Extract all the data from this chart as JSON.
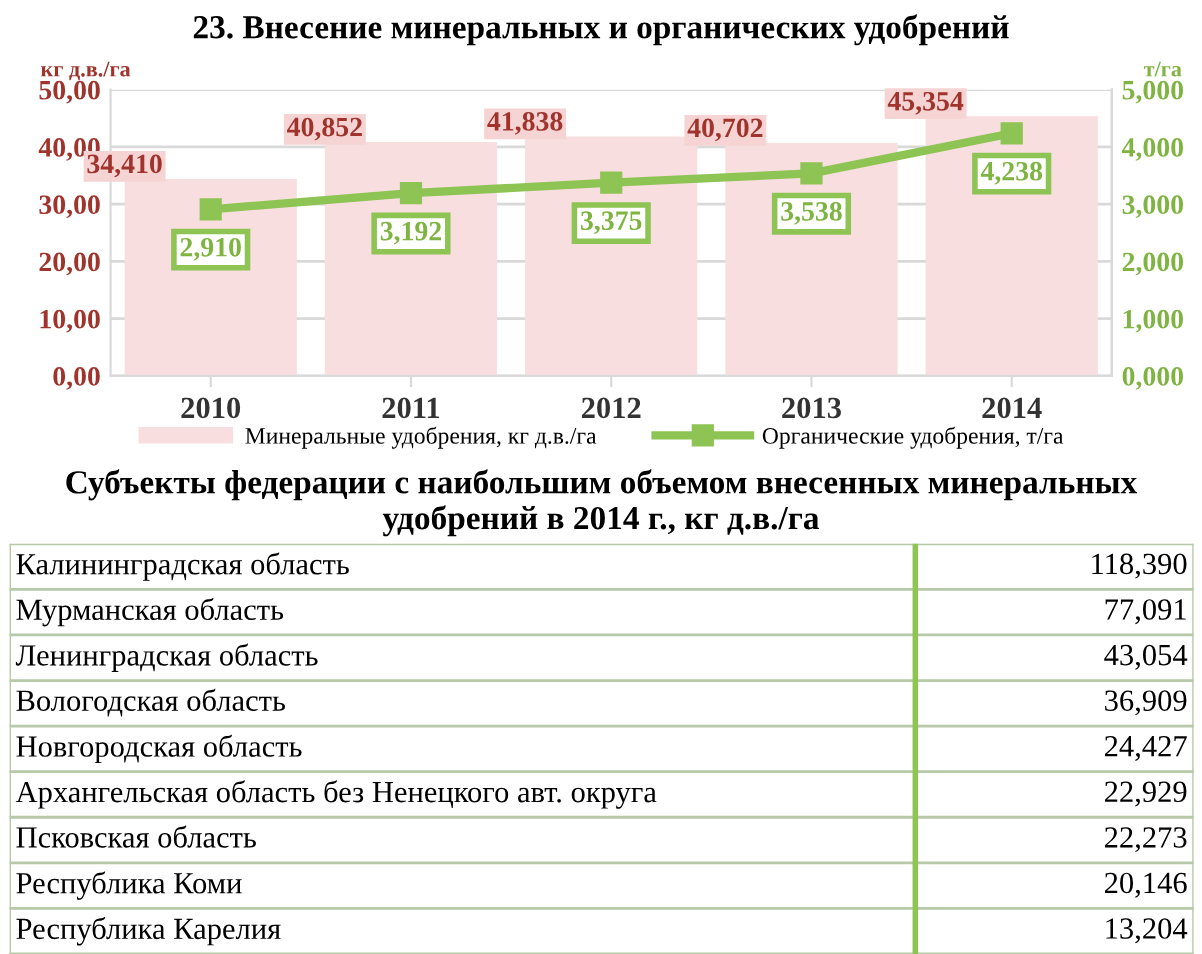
{
  "chart_data": [
    {
      "type": "bar",
      "title": "23. Внесение минеральных и органических удобрений",
      "ylabel": "кг д.в./га",
      "y2label": "т/га",
      "categories": [
        "2010",
        "2011",
        "2012",
        "2013",
        "2014"
      ],
      "series": [
        {
          "name": "Минеральные удобрения, кг д.в./га",
          "type": "bar",
          "color": "#f8dede",
          "values": [
            34.41,
            40.852,
            41.838,
            40.702,
            45.354
          ],
          "value_labels": [
            "34,410",
            "40,852",
            "41,838",
            "40,702",
            "45,354"
          ]
        },
        {
          "name": "Органические удобрения, т/га",
          "type": "line",
          "axis": "y2",
          "color": "#8dc453",
          "values": [
            2.91,
            3.192,
            3.375,
            3.538,
            4.238
          ],
          "value_labels": [
            "2,910",
            "3,192",
            "3,375",
            "3,538",
            "4,238"
          ]
        }
      ],
      "ylim": [
        0,
        50
      ],
      "yticks": [
        {
          "value": 0,
          "label": "0,00"
        },
        {
          "value": 10,
          "label": "10,00"
        },
        {
          "value": 20,
          "label": "20,00"
        },
        {
          "value": 30,
          "label": "30,00"
        },
        {
          "value": 40,
          "label": "40,00"
        },
        {
          "value": 50,
          "label": "50,00"
        }
      ],
      "y2lim": [
        0,
        5
      ],
      "y2ticks": [
        {
          "value": 0,
          "label": "0,000"
        },
        {
          "value": 1,
          "label": "1,000"
        },
        {
          "value": 2,
          "label": "2,000"
        },
        {
          "value": 3,
          "label": "3,000"
        },
        {
          "value": 4,
          "label": "4,000"
        },
        {
          "value": 5,
          "label": "5,000"
        }
      ],
      "grid": "y",
      "legend": "bottom",
      "marker": "square",
      "line_style": "solid"
    },
    {
      "type": "other",
      "title": "Субъекты федерации с наибольшим объемом внесенных минеральных удобрений в 2014 г., кг д.в./га",
      "categories": [
        "Калининградская область",
        "Мурманская область",
        "Ленинградская область",
        "Вологодская область",
        "Новгородская область",
        "Архангельская область без Ненецкого авт. округа",
        "Псковская область",
        "Республика Коми",
        "Республика Карелия"
      ],
      "value_labels": [
        "118,390",
        "77,091",
        "43,054",
        "36,909",
        "24,427",
        "22,929",
        "22,273",
        "20,146",
        "13,204"
      ]
    }
  ]
}
